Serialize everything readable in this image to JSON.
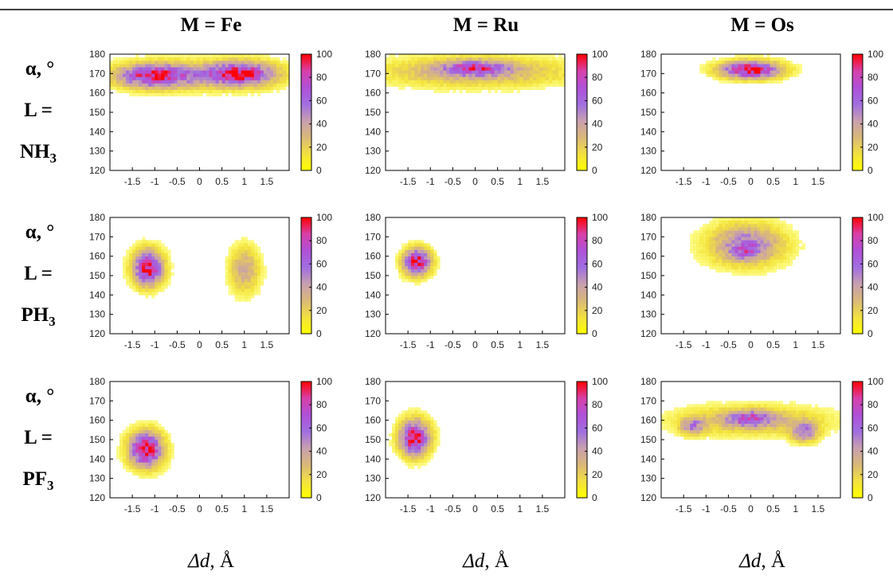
{
  "header": {
    "columns": [
      "M = Fe",
      "M = Ru",
      "M = Os"
    ]
  },
  "rows": [
    {
      "line1": "α, °",
      "line2": "L =",
      "line3_base": "NH",
      "line3_sub": "3"
    },
    {
      "line1": "α, °",
      "line2": "L =",
      "line3_base": "PH",
      "line3_sub": "3"
    },
    {
      "line1": "α, °",
      "line2": "L =",
      "line3_base": "PF",
      "line3_sub": "3"
    }
  ],
  "xlabel": {
    "symbol": "Δd",
    "unit": ", Å"
  },
  "colors": {
    "colorbar_stops": [
      "#ffff00",
      "#f2e040",
      "#d9b87a",
      "#c79fb0",
      "#a06ee0",
      "#b050d8",
      "#d840a8",
      "#ff0000"
    ],
    "frame": "#000000"
  },
  "chart_data": [
    {
      "type": "heatmap",
      "metal": "Fe",
      "ligand": "NH3",
      "xlim": [
        -2,
        2
      ],
      "ylim": [
        120,
        180
      ],
      "x_ticks": [
        -1.5,
        -1,
        -0.5,
        0,
        0.5,
        1,
        1.5
      ],
      "x_tick_labels": [
        "-1.5",
        "-1",
        "-0.5",
        "0",
        "0.5",
        "1",
        "1.5"
      ],
      "y_ticks": [
        120,
        130,
        140,
        150,
        160,
        170,
        180
      ],
      "y_tick_labels": [
        "120",
        "130",
        "140",
        "150",
        "160",
        "170",
        "180"
      ],
      "colorbar_range": [
        0,
        100
      ],
      "colorbar_ticks": [
        "0",
        "20",
        "40",
        "60",
        "80",
        "100"
      ],
      "clusters": [
        {
          "x": -1.0,
          "y": 169,
          "sx": 0.55,
          "sy": 4,
          "peak": 80
        },
        {
          "x": 0.9,
          "y": 170,
          "sx": 0.5,
          "sy": 4,
          "peak": 85
        },
        {
          "x": 0.0,
          "y": 169,
          "sx": 1.2,
          "sy": 5,
          "peak": 25
        }
      ]
    },
    {
      "type": "heatmap",
      "metal": "Ru",
      "ligand": "NH3",
      "xlim": [
        -2,
        2
      ],
      "ylim": [
        120,
        180
      ],
      "x_ticks": [
        -1.5,
        -1,
        -0.5,
        0,
        0.5,
        1,
        1.5
      ],
      "x_tick_labels": [
        "-1.5",
        "-1",
        "-0.5",
        "0",
        "0.5",
        "1",
        "1.5"
      ],
      "y_ticks": [
        120,
        130,
        140,
        150,
        160,
        170,
        180
      ],
      "y_tick_labels": [
        "120",
        "130",
        "140",
        "150",
        "160",
        "170",
        "180"
      ],
      "colorbar_range": [
        0,
        100
      ],
      "colorbar_ticks": [
        "0",
        "20",
        "40",
        "60",
        "80",
        "100"
      ],
      "clusters": [
        {
          "x": 0.0,
          "y": 171,
          "sx": 1.4,
          "sy": 5,
          "peak": 35
        },
        {
          "x": 0.0,
          "y": 173,
          "sx": 0.5,
          "sy": 2.5,
          "peak": 55
        }
      ]
    },
    {
      "type": "heatmap",
      "metal": "Os",
      "ligand": "NH3",
      "xlim": [
        -2,
        2
      ],
      "ylim": [
        120,
        180
      ],
      "x_ticks": [
        -1.5,
        -1,
        -0.5,
        0,
        0.5,
        1,
        1.5
      ],
      "x_tick_labels": [
        "-1.5",
        "-1",
        "-0.5",
        "0",
        "0.5",
        "1",
        "1.5"
      ],
      "y_ticks": [
        120,
        130,
        140,
        150,
        160,
        170,
        180
      ],
      "y_tick_labels": [
        "120",
        "130",
        "140",
        "150",
        "160",
        "170",
        "180"
      ],
      "colorbar_range": [
        0,
        100
      ],
      "colorbar_ticks": [
        "0",
        "20",
        "40",
        "60",
        "80",
        "100"
      ],
      "clusters": [
        {
          "x": 0.0,
          "y": 172,
          "sx": 0.45,
          "sy": 3,
          "peak": 100
        }
      ]
    },
    {
      "type": "heatmap",
      "metal": "Fe",
      "ligand": "PH3",
      "xlim": [
        -2,
        2
      ],
      "ylim": [
        120,
        180
      ],
      "x_ticks": [
        -1.5,
        -1,
        -0.5,
        0,
        0.5,
        1,
        1.5
      ],
      "x_tick_labels": [
        "-1.5",
        "-1",
        "-0.5",
        "0",
        "0.5",
        "1",
        "1.5"
      ],
      "y_ticks": [
        120,
        130,
        140,
        150,
        160,
        170,
        180
      ],
      "y_tick_labels": [
        "120",
        "130",
        "140",
        "150",
        "160",
        "170",
        "180"
      ],
      "colorbar_range": [
        0,
        100
      ],
      "colorbar_ticks": [
        "0",
        "20",
        "40",
        "60",
        "80",
        "100"
      ],
      "clusters": [
        {
          "x": -1.15,
          "y": 154,
          "sx": 0.22,
          "sy": 6,
          "peak": 100
        },
        {
          "x": 1.0,
          "y": 153,
          "sx": 0.22,
          "sy": 8,
          "peak": 35
        }
      ]
    },
    {
      "type": "heatmap",
      "metal": "Ru",
      "ligand": "PH3",
      "xlim": [
        -2,
        2
      ],
      "ylim": [
        120,
        180
      ],
      "x_ticks": [
        -1.5,
        -1,
        -0.5,
        0,
        0.5,
        1,
        1.5
      ],
      "x_tick_labels": [
        "-1.5",
        "-1",
        "-0.5",
        "0",
        "0.5",
        "1",
        "1.5"
      ],
      "y_ticks": [
        120,
        130,
        140,
        150,
        160,
        170,
        180
      ],
      "y_tick_labels": [
        "120",
        "130",
        "140",
        "150",
        "160",
        "170",
        "180"
      ],
      "colorbar_range": [
        0,
        100
      ],
      "colorbar_ticks": [
        "0",
        "20",
        "40",
        "60",
        "80",
        "100"
      ],
      "clusters": [
        {
          "x": -1.3,
          "y": 157,
          "sx": 0.2,
          "sy": 4.5,
          "peak": 100
        }
      ]
    },
    {
      "type": "heatmap",
      "metal": "Os",
      "ligand": "PH3",
      "xlim": [
        -2,
        2
      ],
      "ylim": [
        120,
        180
      ],
      "x_ticks": [
        -1.5,
        -1,
        -0.5,
        0,
        0.5,
        1,
        1.5
      ],
      "x_tick_labels": [
        "-1.5",
        "-1",
        "-0.5",
        "0",
        "0.5",
        "1",
        "1.5"
      ],
      "y_ticks": [
        120,
        130,
        140,
        150,
        160,
        170,
        180
      ],
      "y_tick_labels": [
        "120",
        "130",
        "140",
        "150",
        "160",
        "170",
        "180"
      ],
      "colorbar_range": [
        0,
        100
      ],
      "colorbar_ticks": [
        "0",
        "20",
        "40",
        "60",
        "80",
        "100"
      ],
      "clusters": [
        {
          "x": -0.1,
          "y": 166,
          "sx": 0.55,
          "sy": 7,
          "peak": 55
        },
        {
          "x": -0.1,
          "y": 163,
          "sx": 0.2,
          "sy": 3,
          "peak": 30
        }
      ]
    },
    {
      "type": "heatmap",
      "metal": "Fe",
      "ligand": "PF3",
      "xlim": [
        -2,
        2
      ],
      "ylim": [
        120,
        180
      ],
      "x_ticks": [
        -1.5,
        -1,
        -0.5,
        0,
        0.5,
        1,
        1.5
      ],
      "x_tick_labels": [
        "-1.5",
        "-1",
        "-0.5",
        "0",
        "0.5",
        "1",
        "1.5"
      ],
      "y_ticks": [
        120,
        130,
        140,
        150,
        160,
        170,
        180
      ],
      "y_tick_labels": [
        "120",
        "130",
        "140",
        "150",
        "160",
        "170",
        "180"
      ],
      "colorbar_range": [
        0,
        100
      ],
      "colorbar_ticks": [
        "0",
        "20",
        "40",
        "60",
        "80",
        "100"
      ],
      "clusters": [
        {
          "x": -1.2,
          "y": 145,
          "sx": 0.25,
          "sy": 6,
          "peak": 100
        }
      ]
    },
    {
      "type": "heatmap",
      "metal": "Ru",
      "ligand": "PF3",
      "xlim": [
        -2,
        2
      ],
      "ylim": [
        120,
        180
      ],
      "x_ticks": [
        -1.5,
        -1,
        -0.5,
        0,
        0.5,
        1,
        1.5
      ],
      "x_tick_labels": [
        "-1.5",
        "-1",
        "-0.5",
        "0",
        "0.5",
        "1",
        "1.5"
      ],
      "y_ticks": [
        120,
        130,
        140,
        150,
        160,
        170,
        180
      ],
      "y_tick_labels": [
        "120",
        "130",
        "140",
        "150",
        "160",
        "170",
        "180"
      ],
      "colorbar_range": [
        0,
        100
      ],
      "colorbar_ticks": [
        "0",
        "20",
        "40",
        "60",
        "80",
        "100"
      ],
      "clusters": [
        {
          "x": -1.35,
          "y": 151,
          "sx": 0.22,
          "sy": 6,
          "peak": 100
        }
      ]
    },
    {
      "type": "heatmap",
      "metal": "Os",
      "ligand": "PF3",
      "xlim": [
        -2,
        2
      ],
      "ylim": [
        120,
        180
      ],
      "x_ticks": [
        -1.5,
        -1,
        -0.5,
        0,
        0.5,
        1,
        1.5
      ],
      "x_tick_labels": [
        "-1.5",
        "-1",
        "-0.5",
        "0",
        "0.5",
        "1",
        "1.5"
      ],
      "y_ticks": [
        120,
        130,
        140,
        150,
        160,
        170,
        180
      ],
      "y_tick_labels": [
        "120",
        "130",
        "140",
        "150",
        "160",
        "170",
        "180"
      ],
      "colorbar_range": [
        0,
        100
      ],
      "colorbar_ticks": [
        "0",
        "20",
        "40",
        "60",
        "80",
        "100"
      ],
      "clusters": [
        {
          "x": 0.0,
          "y": 160,
          "sx": 1.1,
          "sy": 5,
          "peak": 30
        },
        {
          "x": 0.0,
          "y": 161,
          "sx": 0.35,
          "sy": 2.5,
          "peak": 55
        },
        {
          "x": -1.3,
          "y": 157,
          "sx": 0.18,
          "sy": 3,
          "peak": 45
        },
        {
          "x": 1.2,
          "y": 154,
          "sx": 0.2,
          "sy": 3.5,
          "peak": 50
        }
      ]
    }
  ]
}
